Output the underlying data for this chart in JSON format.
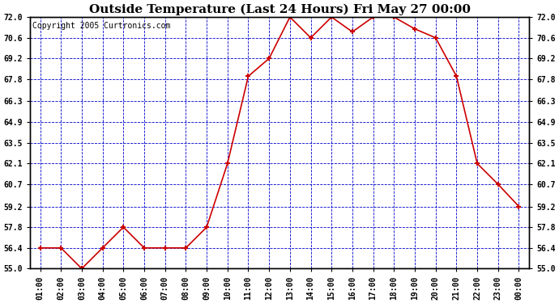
{
  "title": "Outside Temperature (Last 24 Hours) Fri May 27 00:00",
  "copyright": "Copyright 2005 Curtronics.com",
  "x_labels": [
    "01:00",
    "02:00",
    "03:00",
    "04:00",
    "05:00",
    "06:00",
    "07:00",
    "08:00",
    "09:00",
    "10:00",
    "11:00",
    "12:00",
    "13:00",
    "14:00",
    "15:00",
    "16:00",
    "17:00",
    "18:00",
    "19:00",
    "20:00",
    "21:00",
    "22:00",
    "23:00",
    "00:00"
  ],
  "y_values": [
    56.4,
    56.4,
    55.0,
    56.4,
    57.8,
    56.4,
    56.4,
    56.4,
    57.8,
    62.1,
    68.0,
    69.2,
    72.0,
    70.6,
    72.0,
    71.0,
    72.0,
    72.0,
    71.2,
    70.6,
    68.0,
    62.1,
    60.7,
    59.2
  ],
  "line_color": "#cc0000",
  "marker_color": "#cc0000",
  "bg_color": "#ffffff",
  "plot_bg_color": "#ffffff",
  "grid_color": "#0000cc",
  "border_color": "#000000",
  "title_fontsize": 11,
  "copyright_fontsize": 7,
  "tick_fontsize": 7,
  "ylim_min": 55.0,
  "ylim_max": 72.0,
  "yticks": [
    55.0,
    56.4,
    57.8,
    59.2,
    60.7,
    62.1,
    63.5,
    64.9,
    66.3,
    67.8,
    69.2,
    70.6,
    72.0
  ]
}
